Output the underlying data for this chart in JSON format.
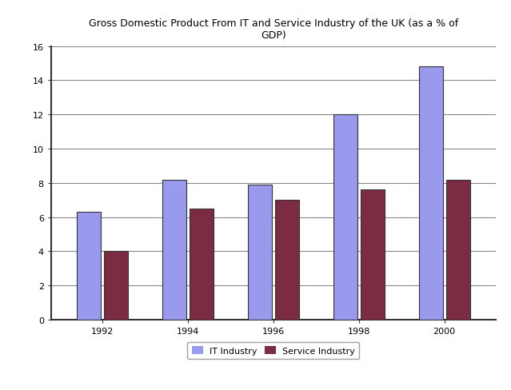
{
  "title": "Gross Domestic Product From IT and Service Industry of the UK (as a % of\nGDP)",
  "years": [
    "1992",
    "1994",
    "1996",
    "1998",
    "2000"
  ],
  "it_industry": [
    6.3,
    8.2,
    7.9,
    12.0,
    14.8
  ],
  "service_industry": [
    4.0,
    6.5,
    7.0,
    7.6,
    8.2
  ],
  "it_color": "#9999EE",
  "service_color": "#7B2B42",
  "bar_width": 0.28,
  "bar_gap": 0.04,
  "ylim": [
    0,
    16
  ],
  "yticks": [
    0,
    2,
    4,
    6,
    8,
    10,
    12,
    14,
    16
  ],
  "legend_it": "IT Industry",
  "legend_service": "Service Industry",
  "background_color": "#FFFFFF",
  "grid_color": "#888888",
  "title_fontsize": 9,
  "tick_fontsize": 8,
  "legend_fontsize": 8,
  "figure_border_color": "#888888"
}
